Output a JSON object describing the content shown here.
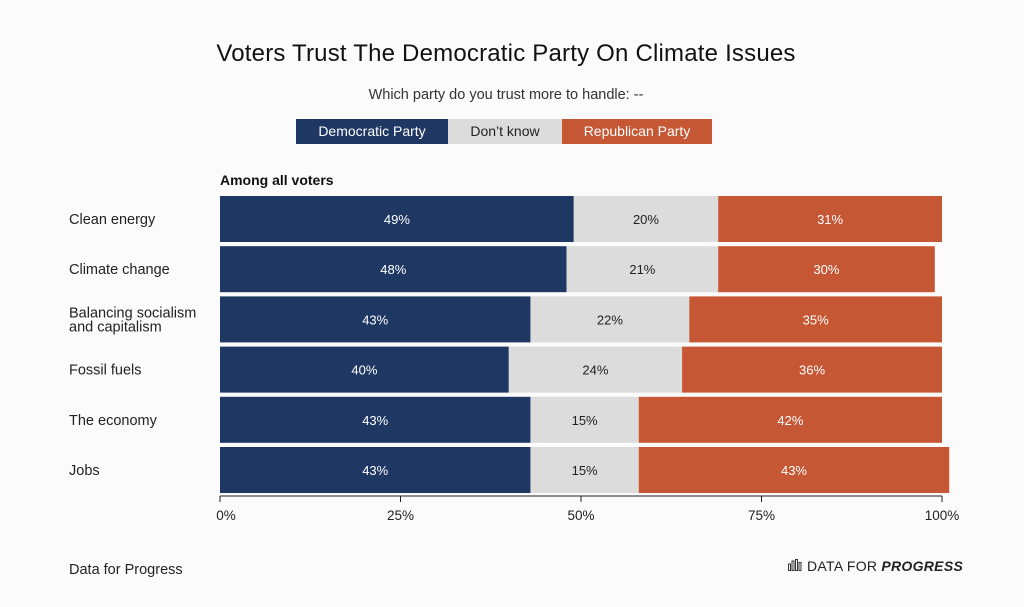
{
  "chart_data": {
    "type": "bar",
    "title": "Voters Trust The Democratic Party On Climate Issues",
    "subtitle": "Which party do you trust more to handle: --",
    "section_label": "Among all voters",
    "categories": [
      "Clean energy",
      "Climate change",
      "Balancing socialism and capitalism",
      "Fossil fuels",
      "The economy",
      "Jobs"
    ],
    "category_lines": [
      [
        "Clean energy"
      ],
      [
        "Climate change"
      ],
      [
        "Balancing socialism",
        "and capitalism"
      ],
      [
        "Fossil fuels"
      ],
      [
        "The economy"
      ],
      [
        "Jobs"
      ]
    ],
    "series": [
      {
        "name": "Democratic Party",
        "color": "#1f3763",
        "values": [
          49,
          48,
          43,
          40,
          43,
          43
        ],
        "labels": [
          "49%",
          "48%",
          "43%",
          "40%",
          "43%",
          "43%"
        ]
      },
      {
        "name": "Don't know",
        "color": "#dcdcdc",
        "values": [
          20,
          21,
          22,
          24,
          15,
          15
        ],
        "labels": [
          "20%",
          "21%",
          "22%",
          "24%",
          "15%",
          "15%"
        ]
      },
      {
        "name": "Republican Party",
        "color": "#c65734",
        "values": [
          31,
          30,
          35,
          36,
          42,
          43
        ],
        "labels": [
          "31%",
          "30%",
          "35%",
          "36%",
          "42%",
          "43%"
        ]
      }
    ],
    "stacked": true,
    "orientation": "horizontal",
    "xlim": [
      0,
      100
    ],
    "x_ticks": [
      0,
      25,
      50,
      75,
      100
    ],
    "x_tick_labels": [
      "0%",
      "25%",
      "50%",
      "75%",
      "100%"
    ],
    "grid": false,
    "legend_position": "top-center"
  },
  "legend": {
    "items": [
      {
        "label": "Democratic Party",
        "color": "#1f3763",
        "text_color": "#ffffff"
      },
      {
        "label": "Don’t know",
        "color": "#dcdcdc",
        "text_color": "#222222"
      },
      {
        "label": "Republican Party",
        "color": "#c65734",
        "text_color": "#ffffff"
      }
    ]
  },
  "footer": {
    "source": "Data for Progress",
    "brand_prefix": "DATA FOR",
    "brand_bold": "PROGRESS",
    "brand_icon": "bar-chart-icon"
  }
}
